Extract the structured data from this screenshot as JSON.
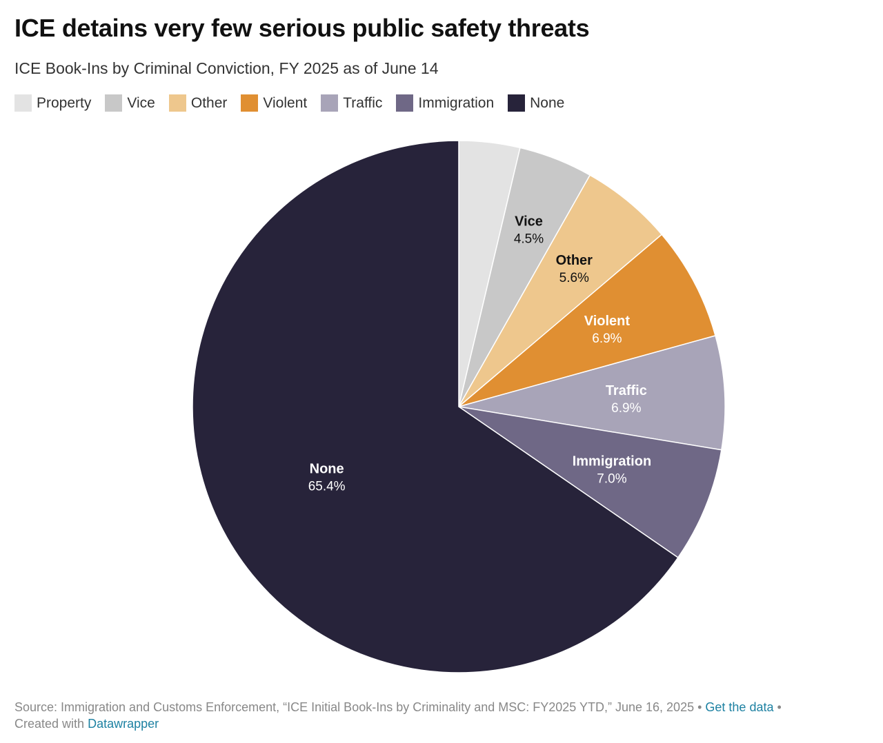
{
  "header": {
    "title": "ICE detains very few serious public safety threats",
    "subtitle": "ICE Book-Ins by Criminal Conviction, FY 2025 as of June 14"
  },
  "chart_data": {
    "type": "pie",
    "title": "ICE detains very few serious public safety threats",
    "subtitle": "ICE Book-Ins by Criminal Conviction, FY 2025 as of June 14",
    "legend_position": "top-left",
    "slices": [
      {
        "label": "Property",
        "value": 3.7,
        "value_label": "",
        "color": "#e3e3e3",
        "show_label": false,
        "label_color": "#111111"
      },
      {
        "label": "Vice",
        "value": 4.5,
        "value_label": "4.5%",
        "color": "#c8c8c8",
        "show_label": true,
        "label_color": "#111111"
      },
      {
        "label": "Other",
        "value": 5.6,
        "value_label": "5.6%",
        "color": "#eec78d",
        "show_label": true,
        "label_color": "#111111"
      },
      {
        "label": "Violent",
        "value": 6.9,
        "value_label": "6.9%",
        "color": "#e08f32",
        "show_label": true,
        "label_color": "#ffffff"
      },
      {
        "label": "Traffic",
        "value": 6.9,
        "value_label": "6.9%",
        "color": "#a8a4b8",
        "show_label": true,
        "label_color": "#ffffff"
      },
      {
        "label": "Immigration",
        "value": 7.0,
        "value_label": "7.0%",
        "color": "#6f6886",
        "show_label": true,
        "label_color": "#ffffff"
      },
      {
        "label": "None",
        "value": 65.4,
        "value_label": "65.4%",
        "color": "#27233a",
        "show_label": true,
        "label_color": "#ffffff"
      }
    ]
  },
  "footer": {
    "source_text": "Source: Immigration and Customs Enforcement, “ICE Initial Book-Ins by Criminality and MSC: FY2025 YTD,” June 16, 2025 •",
    "get_data_link": "Get the data",
    "bullet": "•",
    "created_with": "Created with",
    "datawrapper_link": "Datawrapper"
  }
}
